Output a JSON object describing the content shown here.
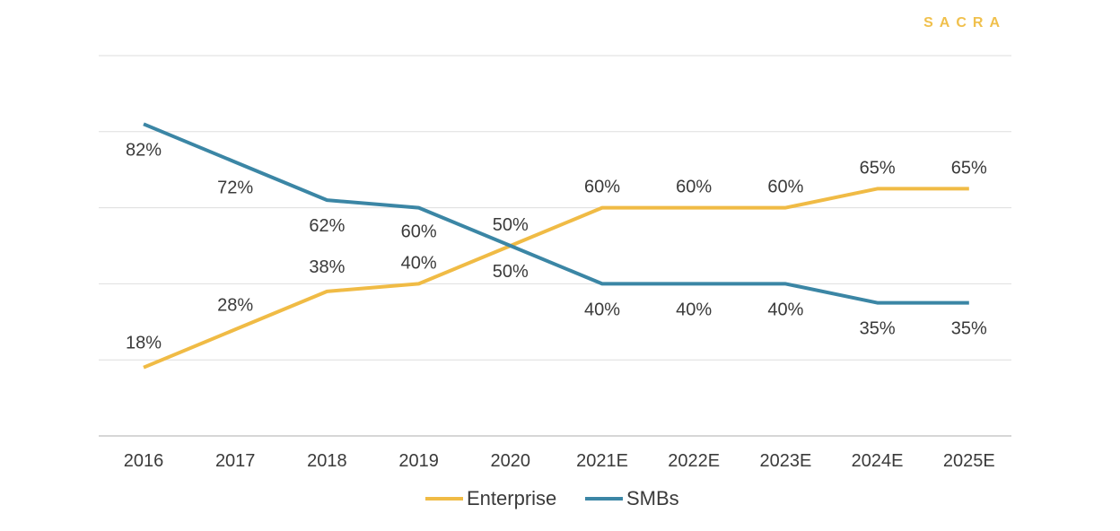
{
  "brand": {
    "name": "SACRA",
    "color": "#f0c04c"
  },
  "chart_data": {
    "type": "line",
    "title": "",
    "xlabel": "",
    "ylabel": "",
    "ylim": [
      0,
      100
    ],
    "grid": true,
    "legend_position": "bottom",
    "categories": [
      "2016",
      "2017",
      "2018",
      "2019",
      "2020",
      "2021E",
      "2022E",
      "2023E",
      "2024E",
      "2025E"
    ],
    "series": [
      {
        "name": "Enterprise",
        "color": "#f0bb45",
        "values": [
          18,
          28,
          38,
          40,
          50,
          60,
          60,
          60,
          65,
          65
        ],
        "labels": [
          "18%",
          "28%",
          "38%",
          "40%",
          "50%",
          "60%",
          "60%",
          "60%",
          "65%",
          "65%"
        ]
      },
      {
        "name": "SMBs",
        "color": "#3b86a5",
        "values": [
          82,
          72,
          62,
          60,
          50,
          40,
          40,
          40,
          35,
          35
        ],
        "labels": [
          "82%",
          "72%",
          "62%",
          "60%",
          "50%",
          "40%",
          "40%",
          "40%",
          "35%",
          "35%"
        ]
      }
    ]
  }
}
